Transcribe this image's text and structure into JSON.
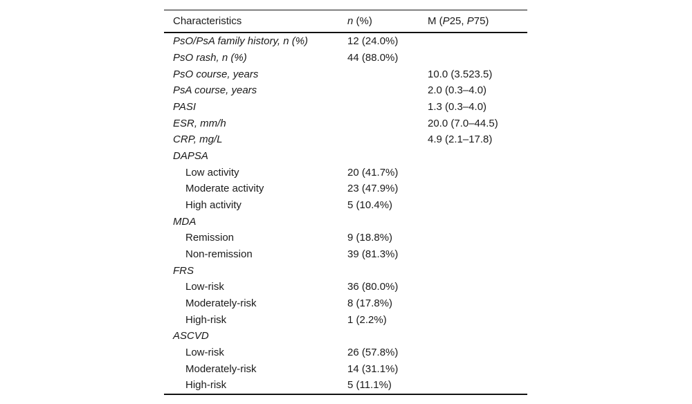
{
  "table": {
    "header": {
      "characteristics": "Characteristics",
      "n_italic": "n",
      "n_rest": " (%)",
      "m_pre": "M (",
      "m_p1": "P",
      "m_q1": "25, ",
      "m_p2": "P",
      "m_q3": "75)"
    },
    "rows": [
      {
        "label": "PsO/PsA family history, n (%)",
        "n": "12 (24.0%)",
        "m": ""
      },
      {
        "label": "PsO rash, n (%)",
        "n": "44 (88.0%)",
        "m": ""
      },
      {
        "label": "PsO course, years",
        "n": "",
        "m": "10.0 (3.523.5)"
      },
      {
        "label": "PsA course, years",
        "n": "",
        "m": "2.0 (0.3–4.0)"
      },
      {
        "label": "PASI",
        "n": "",
        "m": "1.3 (0.3–4.0)"
      },
      {
        "label": "ESR, mm/h",
        "n": "",
        "m": "20.0 (7.0–44.5)"
      },
      {
        "label": "CRP, mg/L",
        "n": "",
        "m": "4.9 (2.1–17.8)"
      },
      {
        "label": "DAPSA",
        "n": "",
        "m": ""
      },
      {
        "label": "Low activity",
        "n": "20 (41.7%)",
        "m": ""
      },
      {
        "label": "Moderate activity",
        "n": "23 (47.9%)",
        "m": ""
      },
      {
        "label": "High activity",
        "n": "5 (10.4%)",
        "m": ""
      },
      {
        "label": "MDA",
        "n": "",
        "m": ""
      },
      {
        "label": "Remission",
        "n": "9 (18.8%)",
        "m": ""
      },
      {
        "label": "Non-remission",
        "n": "39 (81.3%)",
        "m": ""
      },
      {
        "label": "FRS",
        "n": "",
        "m": ""
      },
      {
        "label": "Low-risk",
        "n": "36 (80.0%)",
        "m": ""
      },
      {
        "label": "Moderately-risk",
        "n": "8 (17.8%)",
        "m": ""
      },
      {
        "label": "High-risk",
        "n": "1 (2.2%)",
        "m": ""
      },
      {
        "label": "ASCVD",
        "n": "",
        "m": ""
      },
      {
        "label": "Low-risk",
        "n": "26 (57.8%)",
        "m": ""
      },
      {
        "label": "Moderately-risk",
        "n": "14 (31.1%)",
        "m": ""
      },
      {
        "label": "High-risk",
        "n": "5 (11.1%)",
        "m": ""
      }
    ],
    "colors": {
      "rule": "#111111",
      "text": "#1a1a1a",
      "background": "#ffffff"
    }
  }
}
